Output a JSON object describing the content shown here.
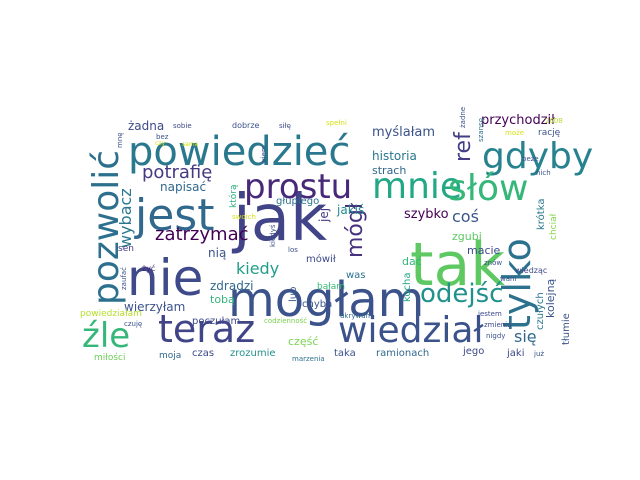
{
  "words": [
    {
      "text": "jak",
      "color": "#414487"
    },
    {
      "text": "tak",
      "color": "#5ec962"
    },
    {
      "text": "mogłam",
      "color": "#3b528b"
    },
    {
      "text": "nie",
      "color": "#3e4a89"
    },
    {
      "text": "powiedzieć",
      "color": "#2a788e"
    },
    {
      "text": "jest",
      "color": "#31688e"
    },
    {
      "text": "prostu",
      "color": "#482878"
    },
    {
      "text": "gdyby",
      "color": "#26828e"
    },
    {
      "text": "mnie",
      "color": "#22a884"
    },
    {
      "text": "słów",
      "color": "#35b779"
    },
    {
      "text": "tylko",
      "color": "#2c728e"
    },
    {
      "text": "pozwolić",
      "color": "#2d708e"
    },
    {
      "text": "teraz",
      "color": "#414487"
    },
    {
      "text": "wiedział",
      "color": "#3b528b"
    },
    {
      "text": "źle",
      "color": "#35b779"
    },
    {
      "text": "odejść",
      "color": "#21918c"
    },
    {
      "text": "mógł",
      "color": "#46327e"
    },
    {
      "text": "ref",
      "color": "#433e85"
    },
    {
      "text": "potrafię",
      "color": "#443983"
    },
    {
      "text": "zatrzymać",
      "color": "#440154"
    },
    {
      "text": "wybacz",
      "color": "#2a788e"
    },
    {
      "text": "kiedy",
      "color": "#1f9e89"
    },
    {
      "text": "coś",
      "color": "#39568c"
    },
    {
      "text": "szybko",
      "color": "#440154"
    },
    {
      "text": "się",
      "color": "#31688e"
    },
    {
      "text": "przychodził",
      "color": "#440154"
    },
    {
      "text": "myślałam",
      "color": "#3b528b"
    },
    {
      "text": "historia",
      "color": "#2a788e"
    },
    {
      "text": "strach",
      "color": "#31688e"
    },
    {
      "text": "żadna",
      "color": "#3e4a89"
    },
    {
      "text": "napisać",
      "color": "#31688e"
    },
    {
      "text": "głupiego",
      "color": "#2c728e"
    },
    {
      "text": "jakiś",
      "color": "#23898e"
    },
    {
      "text": "jej",
      "color": "#443a83"
    },
    {
      "text": "którą",
      "color": "#2ab07f"
    },
    {
      "text": "nią",
      "color": "#3b528b"
    },
    {
      "text": "zdradzi",
      "color": "#31688e"
    },
    {
      "text": "wierzyłam",
      "color": "#3b528b"
    },
    {
      "text": "tobą",
      "color": "#35b779"
    },
    {
      "text": "poczułam",
      "color": "#3e4a89"
    },
    {
      "text": "lub",
      "color": "#39568c"
    },
    {
      "text": "mówił",
      "color": "#3e4a89"
    },
    {
      "text": "bałam",
      "color": "#3aba76"
    },
    {
      "text": "chyba",
      "color": "#3b528b"
    },
    {
      "text": "was",
      "color": "#2c728e"
    },
    {
      "text": "kocha",
      "color": "#22a884"
    },
    {
      "text": "dać",
      "color": "#35b779"
    },
    {
      "text": "zgubi",
      "color": "#5ec962"
    },
    {
      "text": "macie",
      "color": "#3e4a89"
    },
    {
      "text": "wiedząc",
      "color": "#3e4a89"
    },
    {
      "text": "krótka",
      "color": "#2a788e"
    },
    {
      "text": "chciał",
      "color": "#86d549"
    },
    {
      "text": "kolejną",
      "color": "#3b528b"
    },
    {
      "text": "czułych",
      "color": "#2a788e"
    },
    {
      "text": "tłumie",
      "color": "#3b528b"
    },
    {
      "text": "część",
      "color": "#7ad151"
    },
    {
      "text": "taka",
      "color": "#3b528b"
    },
    {
      "text": "ramionach",
      "color": "#31688e"
    },
    {
      "text": "jego",
      "color": "#3e4a89"
    },
    {
      "text": "jaki",
      "color": "#3e4a89"
    },
    {
      "text": "czas",
      "color": "#3e4a89"
    },
    {
      "text": "zrozumie",
      "color": "#21918c"
    },
    {
      "text": "moja",
      "color": "#31688e"
    },
    {
      "text": "miłości",
      "color": "#6ece58"
    },
    {
      "text": "sen",
      "color": "#443983"
    },
    {
      "text": "żyć",
      "color": "#482878"
    },
    {
      "text": "zaufać",
      "color": "#3b528b"
    },
    {
      "text": "powiedziałam",
      "color": "#b5de2b"
    },
    {
      "text": "ukrywan",
      "color": "#31688e"
    },
    {
      "text": "codzienność",
      "color": "#7ad151"
    },
    {
      "text": "marzenia",
      "color": "#2c728e"
    },
    {
      "text": "los",
      "color": "#3b528b"
    },
    {
      "text": "swoich",
      "color": "#d8e219"
    },
    {
      "text": "sobie",
      "color": "#3e4a89"
    },
    {
      "text": "dobrze",
      "color": "#3b528b"
    },
    {
      "text": "siłę",
      "color": "#3e4a89"
    },
    {
      "text": "spełni",
      "color": "#d8e219"
    },
    {
      "text": "szansę",
      "color": "#2c728e"
    },
    {
      "text": "mnę",
      "color": "#3b528b"
    },
    {
      "text": "rację",
      "color": "#3b528b"
    },
    {
      "text": "2008",
      "color": "#b5de2b"
    },
    {
      "text": "kiedyś",
      "color": "#3b528b"
    },
    {
      "text": "wiem",
      "color": "#3b528b"
    },
    {
      "text": "bez",
      "color": "#3b528b"
    },
    {
      "text": "może",
      "color": "#d8e219"
    },
    {
      "text": "beze",
      "color": "#3b528b"
    },
    {
      "text": "nich",
      "color": "#3b528b"
    },
    {
      "text": "znów",
      "color": "#3b528b"
    },
    {
      "text": "wani",
      "color": "#3b528b"
    },
    {
      "text": "żadne",
      "color": "#3b528b"
    },
    {
      "text": "nigdy",
      "color": "#3b528b"
    },
    {
      "text": "jestem",
      "color": "#3e4a89"
    },
    {
      "text": "zmienia",
      "color": "#3e4a89"
    },
    {
      "text": "czuję",
      "color": "#3b528b"
    },
    {
      "text": "już",
      "color": "#3b528b"
    },
    {
      "text": "czy",
      "color": "#d8e219"
    },
    {
      "text": "sama",
      "color": "#d8e219"
    }
  ]
}
